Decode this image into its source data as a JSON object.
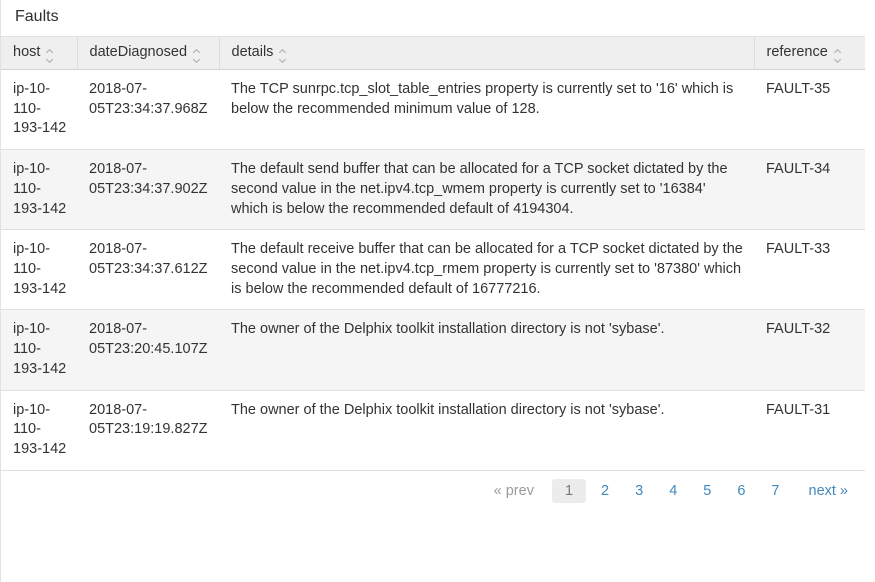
{
  "page": {
    "title": "Faults"
  },
  "table": {
    "columns": [
      {
        "key": "host",
        "label": "host"
      },
      {
        "key": "dateDiagnosed",
        "label": "dateDiagnosed"
      },
      {
        "key": "details",
        "label": "details"
      },
      {
        "key": "reference",
        "label": "reference"
      }
    ],
    "rows": [
      {
        "host": "ip-10-110-193-142",
        "dateDiagnosed": "2018-07-05T23:34:37.968Z",
        "details": "The TCP sunrpc.tcp_slot_table_entries property is currently set to '16' which is below the recommended minimum value of 128.",
        "reference": "FAULT-35"
      },
      {
        "host": "ip-10-110-193-142",
        "dateDiagnosed": "2018-07-05T23:34:37.902Z",
        "details": "The default send buffer that can be allocated for a TCP socket dictated by the second value in the net.ipv4.tcp_wmem property is currently set to '16384' which is below the recommended default of 4194304.",
        "reference": "FAULT-34"
      },
      {
        "host": "ip-10-110-193-142",
        "dateDiagnosed": "2018-07-05T23:34:37.612Z",
        "details": "The default receive buffer that can be allocated for a TCP socket dictated by the second value in the net.ipv4.tcp_rmem property is currently set to '87380' which is below the recommended default of 16777216.",
        "reference": "FAULT-33"
      },
      {
        "host": "ip-10-110-193-142",
        "dateDiagnosed": "2018-07-05T23:20:45.107Z",
        "details": "The owner of the Delphix toolkit installation directory is not 'sybase'.",
        "reference": "FAULT-32"
      },
      {
        "host": "ip-10-110-193-142",
        "dateDiagnosed": "2018-07-05T23:19:19.827Z",
        "details": "The owner of the Delphix toolkit installation directory is not 'sybase'.",
        "reference": "FAULT-31"
      }
    ]
  },
  "pagination": {
    "prev_label": "« prev",
    "next_label": "next »",
    "pages": [
      "1",
      "2",
      "3",
      "4",
      "5",
      "6",
      "7"
    ],
    "current_page": "1"
  },
  "icons": {
    "sort": "sort-toggle-icon"
  },
  "colors": {
    "link_blue": "#4288ba",
    "header_bg": "#efefef",
    "alt_row_bg": "#f5f5f5",
    "border": "#e0e0e0",
    "text": "#333333",
    "muted": "#9b9b9b"
  }
}
